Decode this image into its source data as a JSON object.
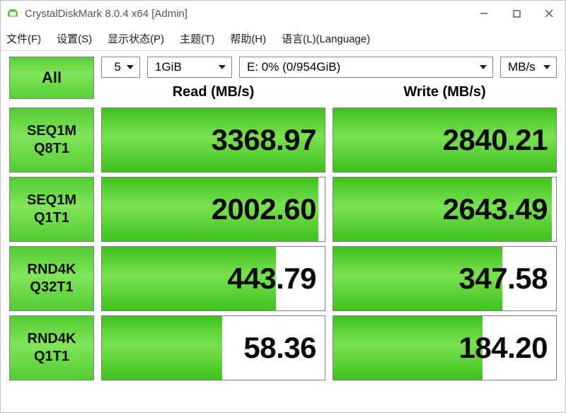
{
  "window": {
    "title": "CrystalDiskMark 8.0.4 x64 [Admin]"
  },
  "menu": {
    "file": "文件(F)",
    "settings": "设置(S)",
    "display": "显示状态(P)",
    "theme": "主题(T)",
    "help": "帮助(H)",
    "language": "语言(L)(Language)"
  },
  "controls": {
    "all_button": "All",
    "runs": "5",
    "test_size": "1GiB",
    "drive": "E: 0% (0/954GiB)",
    "unit": "MB/s"
  },
  "headers": {
    "read": "Read (MB/s)",
    "write": "Write (MB/s)"
  },
  "tests": [
    {
      "name_line1": "SEQ1M",
      "name_line2": "Q8T1",
      "read": "3368.97",
      "read_bar_pct": 100,
      "write": "2840.21",
      "write_bar_pct": 100
    },
    {
      "name_line1": "SEQ1M",
      "name_line2": "Q1T1",
      "read": "2002.60",
      "read_bar_pct": 97,
      "write": "2643.49",
      "write_bar_pct": 98
    },
    {
      "name_line1": "RND4K",
      "name_line2": "Q32T1",
      "read": "443.79",
      "read_bar_pct": 78,
      "write": "347.58",
      "write_bar_pct": 76
    },
    {
      "name_line1": "RND4K",
      "name_line2": "Q1T1",
      "read": "58.36",
      "read_bar_pct": 54,
      "write": "184.20",
      "write_bar_pct": 67
    }
  ],
  "colors": {
    "green_top": "#52cc31",
    "green_mid": "#82e45b",
    "green_bot": "#52cc31",
    "border": "#808080",
    "background": "#ffffff",
    "text": "#101010"
  }
}
